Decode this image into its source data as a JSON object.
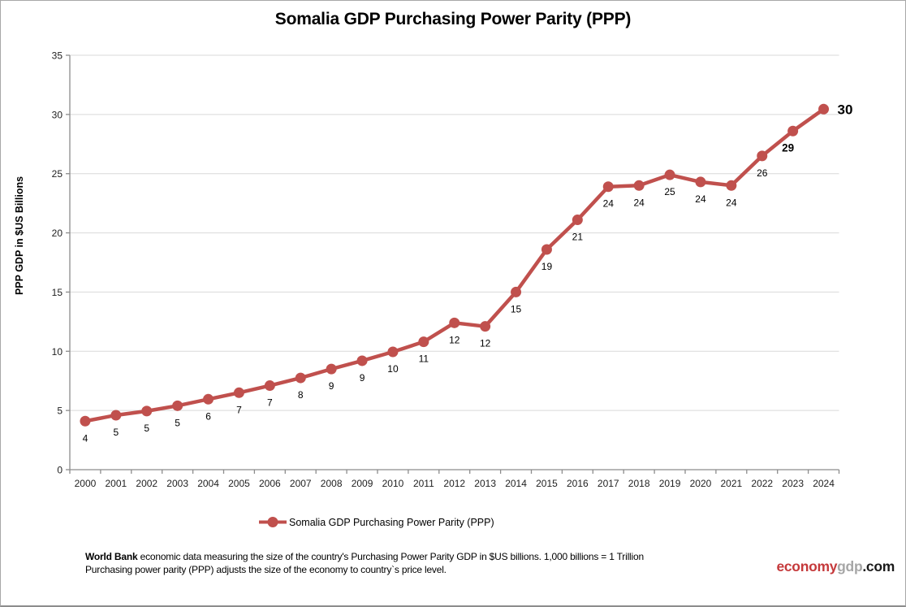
{
  "chart_data": {
    "type": "line",
    "title": "Somalia GDP Purchasing Power Parity (PPP)",
    "xlabel": "",
    "ylabel": "PPP GDP in $US Billions",
    "ylim": [
      0,
      35
    ],
    "ytick_step": 5,
    "grid": true,
    "legend_position": "bottom",
    "grid_color": "#D9D9D9",
    "axis_color": "#8C8C8C",
    "categories": [
      2000,
      2001,
      2002,
      2003,
      2004,
      2005,
      2006,
      2007,
      2008,
      2009,
      2010,
      2011,
      2012,
      2013,
      2014,
      2015,
      2016,
      2017,
      2018,
      2019,
      2020,
      2021,
      2022,
      2023,
      2024
    ],
    "series": [
      {
        "name": "Somalia GDP Purchasing Power Parity (PPP)",
        "color": "#C0504D",
        "values": [
          4.1,
          4.6,
          4.95,
          5.4,
          5.95,
          6.5,
          7.1,
          7.75,
          8.5,
          9.2,
          9.95,
          10.8,
          12.4,
          12.1,
          15.0,
          18.6,
          21.1,
          23.9,
          24.0,
          24.9,
          24.3,
          24.0,
          26.5,
          28.6,
          30.45
        ],
        "point_labels": [
          "4",
          "5",
          "5",
          "5",
          "6",
          "7",
          "7",
          "8",
          "9",
          "9",
          "10",
          "11",
          "12",
          "12",
          "15",
          "19",
          "21",
          "24",
          "24",
          "25",
          "24",
          "24",
          "26",
          "29",
          "30"
        ],
        "emphasized_label_years": [
          2023,
          2024
        ]
      }
    ]
  },
  "footer": {
    "bold_prefix": "World Bank",
    "line1_rest": "economic data  measuring the size of the country's Purchasing Power Parity GDP in $US billions. 1,000 billions = 1 Trillion",
    "line2": "Purchasing power parity (PPP) adjusts the size of the economy to country`s price level."
  },
  "branding": {
    "part1": "economy",
    "part2": "gdp",
    "part3": ".com",
    "colors": {
      "part1": "#C5393B",
      "part2": "#A6A6A6",
      "part3": "#1A1A1A"
    }
  }
}
